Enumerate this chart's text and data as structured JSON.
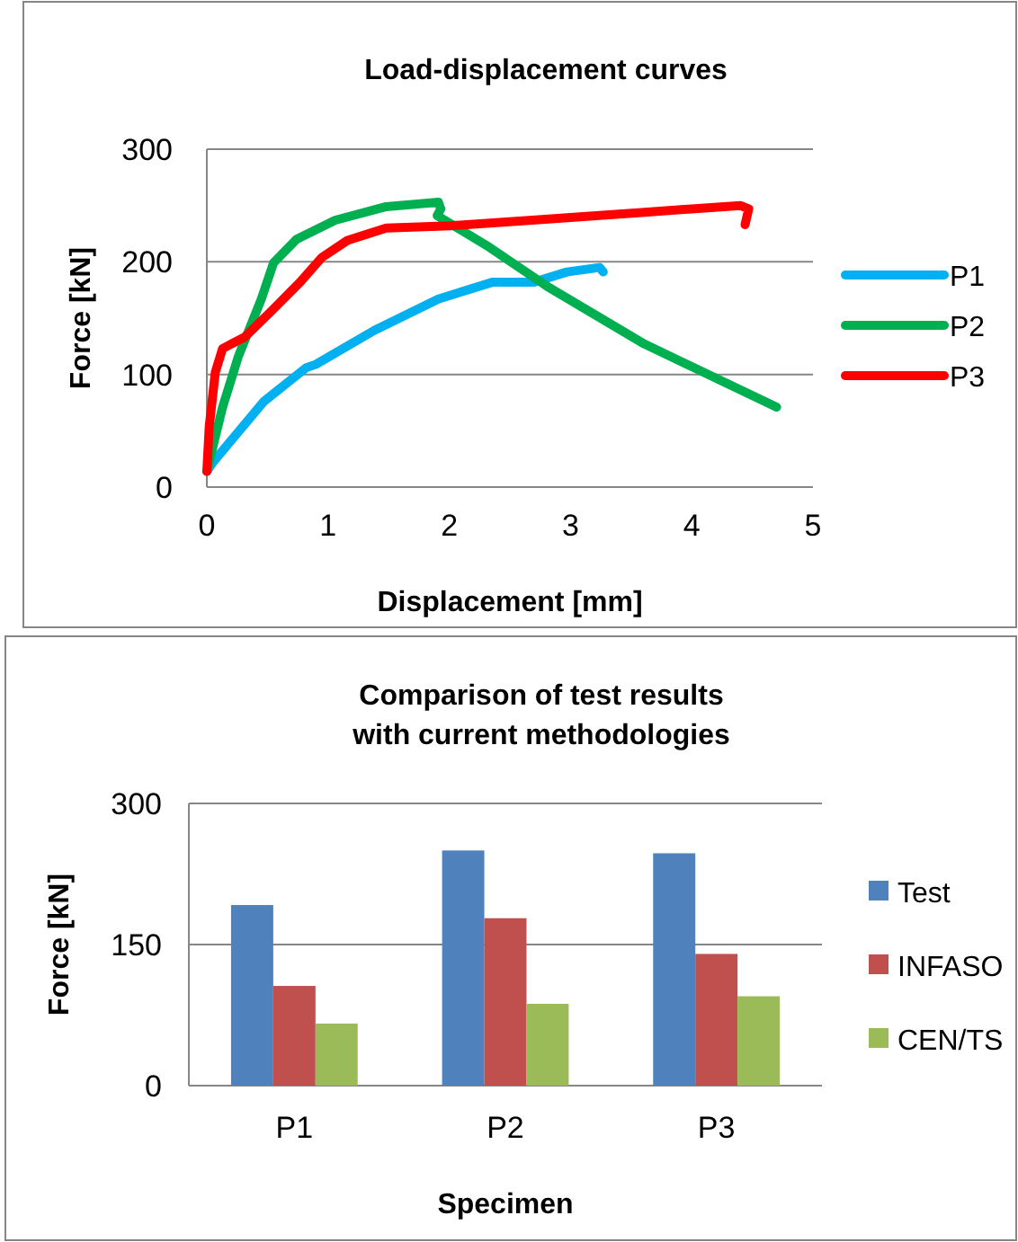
{
  "chart_data": [
    {
      "type": "line",
      "title": "Load-displacement curves",
      "xlabel": "Displacement [mm]",
      "ylabel": "Force [kN]",
      "xlim": [
        0,
        5
      ],
      "xticks": [
        0,
        1,
        2,
        3,
        4,
        5
      ],
      "ylim": [
        0,
        300
      ],
      "yticks": [
        0,
        100,
        200,
        300
      ],
      "grid": "y",
      "legend": "right",
      "marker": "none",
      "line_style": "solid",
      "series": [
        {
          "name": "P1",
          "color": "#00b0f0",
          "x": [
            0,
            0.05,
            0.47,
            0.82,
            0.9,
            1.38,
            1.91,
            2.36,
            2.7,
            2.97,
            3.24,
            3.27
          ],
          "values": [
            14,
            22,
            76,
            106,
            109,
            139,
            167,
            182,
            182,
            191,
            195,
            191
          ]
        },
        {
          "name": "P2",
          "color": "#00b050",
          "x": [
            0,
            0.13,
            0.26,
            0.45,
            0.55,
            0.74,
            1.06,
            1.48,
            1.91,
            1.93,
            1.9,
            2.33,
            2.81,
            3.61,
            4.7
          ],
          "values": [
            14,
            71,
            116,
            167,
            199,
            220,
            237,
            249,
            253,
            247,
            241,
            213,
            178,
            127,
            71
          ]
        },
        {
          "name": "P3",
          "color": "#ff0000",
          "x": [
            0,
            0.02,
            0.07,
            0.13,
            0.31,
            0.53,
            0.77,
            0.95,
            1.16,
            1.48,
            2.01,
            2.55,
            3.61,
            4.4,
            4.47,
            4.44
          ],
          "values": [
            14,
            54,
            102,
            123,
            133,
            156,
            182,
            204,
            219,
            230,
            232,
            236,
            244,
            250,
            247,
            233
          ]
        }
      ]
    },
    {
      "type": "bar",
      "title": "Comparison of test results with current methodologies",
      "xlabel": "Specimen",
      "ylabel": "Force  [kN]",
      "categories": [
        "P1",
        "P2",
        "P3"
      ],
      "ylim": [
        0,
        300
      ],
      "yticks": [
        0,
        150,
        300
      ],
      "grid": "y",
      "legend": "right",
      "series": [
        {
          "name": "Test",
          "color": "#4f81bd",
          "values": [
            192,
            250,
            247
          ]
        },
        {
          "name": "INFASO",
          "color": "#c0504d",
          "values": [
            106,
            178,
            140
          ]
        },
        {
          "name": "CEN/TS",
          "color": "#9bbb59",
          "values": [
            66,
            87,
            95
          ]
        }
      ]
    }
  ]
}
